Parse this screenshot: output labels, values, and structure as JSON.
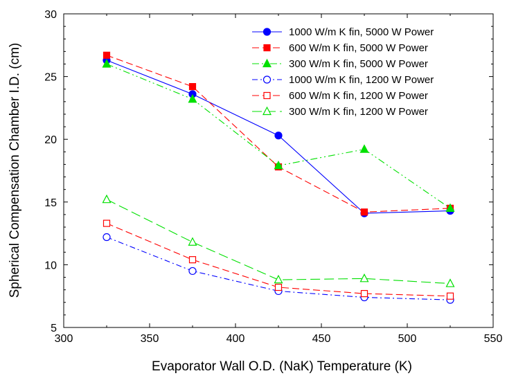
{
  "chart_data": {
    "type": "line",
    "title": "",
    "xlabel": "Evaporator Wall O.D. (NaK) Temperature (K)",
    "ylabel": "Spherical Compensation Chamber I.D. (cm)",
    "xlim": [
      300,
      550
    ],
    "ylim": [
      5,
      30
    ],
    "xticks": [
      300,
      350,
      400,
      450,
      500,
      550
    ],
    "yticks": [
      5,
      10,
      15,
      20,
      25,
      30
    ],
    "xtick_labels": [
      "300",
      "350",
      "400",
      "450",
      "500",
      "550"
    ],
    "ytick_labels": [
      "5",
      "10",
      "15",
      "20",
      "25",
      "30"
    ],
    "grid": false,
    "legend_position": "top-right",
    "x": [
      325,
      375,
      425,
      475,
      525
    ],
    "series": [
      {
        "name": "1000 W/m K fin, 5000 W Power",
        "values": [
          26.3,
          23.6,
          20.3,
          14.1,
          14.3
        ],
        "color": "#0000ff",
        "marker": "circle",
        "filled": true,
        "dash": "solid"
      },
      {
        "name": "600 W/m K fin, 5000 W Power",
        "values": [
          26.7,
          24.2,
          17.8,
          14.2,
          14.5
        ],
        "color": "#ff0000",
        "marker": "square",
        "filled": true,
        "dash": "dash"
      },
      {
        "name": "300 W/m K fin, 5000 W Power",
        "values": [
          26.0,
          23.2,
          17.9,
          19.2,
          14.5
        ],
        "color": "#00e000",
        "marker": "triangle",
        "filled": true,
        "dash": "dashdotdot"
      },
      {
        "name": "1000 W/m K fin, 1200 W Power",
        "values": [
          12.2,
          9.5,
          7.9,
          7.4,
          7.2
        ],
        "color": "#0000ff",
        "marker": "circle",
        "filled": false,
        "dash": "dashdot"
      },
      {
        "name": "600 W/m K fin, 1200 W Power",
        "values": [
          13.3,
          10.4,
          8.2,
          7.7,
          7.5
        ],
        "color": "#ff0000",
        "marker": "square",
        "filled": false,
        "dash": "dash"
      },
      {
        "name": "300 W/m K fin, 1200 W Power",
        "values": [
          15.2,
          11.8,
          8.8,
          8.9,
          8.5
        ],
        "color": "#00e000",
        "marker": "triangle",
        "filled": false,
        "dash": "longdash"
      }
    ]
  }
}
